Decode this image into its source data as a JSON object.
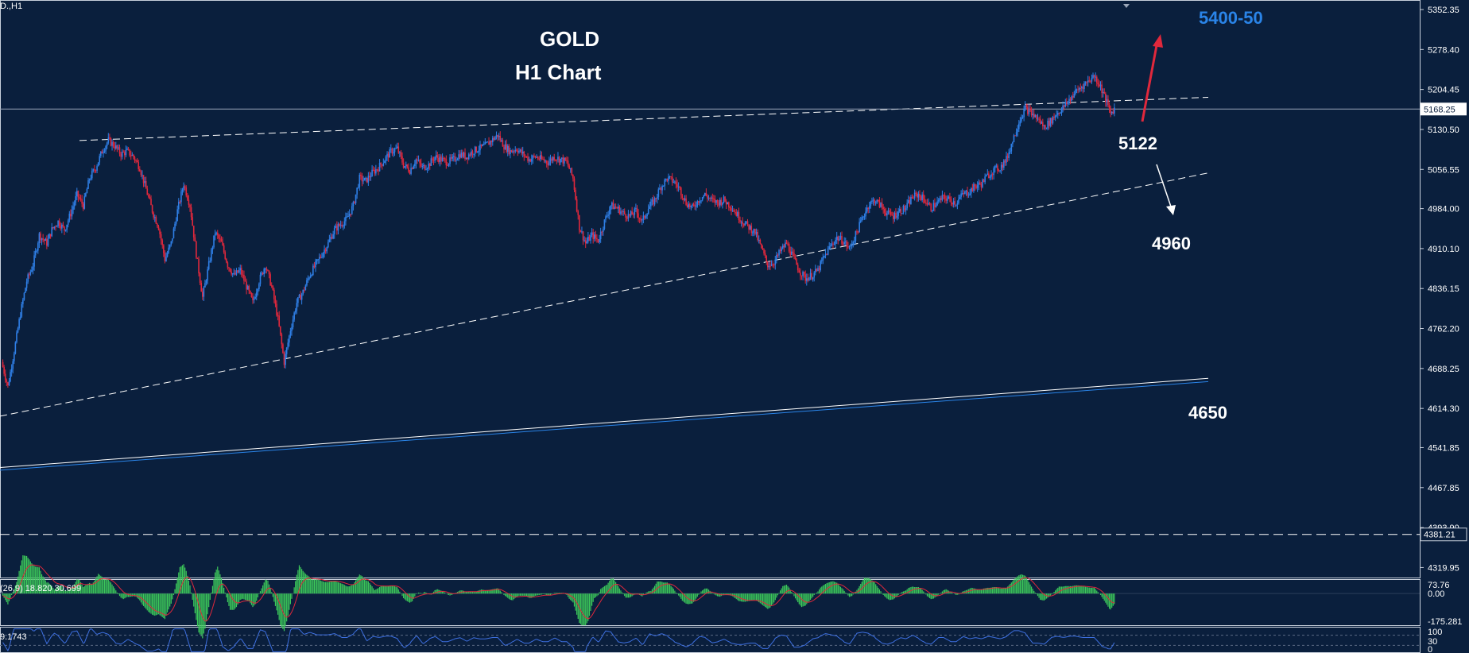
{
  "symbol_label": "D.,H1",
  "chart_data": {
    "type": "candlestick",
    "title": "GOLD",
    "subtitle": "H1 Chart",
    "colors": {
      "background": "#0a1f3d",
      "bull": "#2f7fe6",
      "bear": "#e0283c",
      "grid_line": "#ffffff",
      "macd_hist": "#3cc85a",
      "macd_signal": "#e0283c",
      "rsi_line": "#3d6fe0"
    },
    "y_ticks": [
      "5352.35",
      "5278.40",
      "5204.45",
      "5130.50",
      "5056.55",
      "4984.00",
      "4910.10",
      "4836.15",
      "4762.20",
      "4688.25",
      "4614.30",
      "4541.85",
      "4467.85",
      "4393.90",
      "4319.95"
    ],
    "ylim": [
      4300,
      5370
    ],
    "current_price": "5168.25",
    "horizontal_level": "4381.21",
    "price_path": [
      [
        0,
        4700
      ],
      [
        5,
        4655
      ],
      [
        10,
        4720
      ],
      [
        15,
        4790
      ],
      [
        20,
        4850
      ],
      [
        25,
        4880
      ],
      [
        30,
        4935
      ],
      [
        36,
        4920
      ],
      [
        40,
        4945
      ],
      [
        45,
        4960
      ],
      [
        50,
        4945
      ],
      [
        55,
        4975
      ],
      [
        60,
        5010
      ],
      [
        65,
        4990
      ],
      [
        70,
        5040
      ],
      [
        75,
        5060
      ],
      [
        80,
        5090
      ],
      [
        85,
        5110
      ],
      [
        90,
        5100
      ],
      [
        95,
        5085
      ],
      [
        100,
        5090
      ],
      [
        105,
        5080
      ],
      [
        110,
        5060
      ],
      [
        115,
        5020
      ],
      [
        120,
        4980
      ],
      [
        125,
        4950
      ],
      [
        130,
        4890
      ],
      [
        135,
        4920
      ],
      [
        140,
        4980
      ],
      [
        145,
        5030
      ],
      [
        150,
        4990
      ],
      [
        155,
        4900
      ],
      [
        160,
        4820
      ],
      [
        165,
        4880
      ],
      [
        170,
        4940
      ],
      [
        175,
        4920
      ],
      [
        180,
        4880
      ],
      [
        185,
        4860
      ],
      [
        190,
        4870
      ],
      [
        195,
        4840
      ],
      [
        200,
        4810
      ],
      [
        205,
        4850
      ],
      [
        210,
        4880
      ],
      [
        215,
        4840
      ],
      [
        220,
        4780
      ],
      [
        225,
        4700
      ],
      [
        230,
        4760
      ],
      [
        235,
        4810
      ],
      [
        240,
        4830
      ],
      [
        245,
        4860
      ],
      [
        250,
        4880
      ],
      [
        255,
        4900
      ],
      [
        260,
        4920
      ],
      [
        265,
        4945
      ],
      [
        270,
        4955
      ],
      [
        275,
        4965
      ],
      [
        280,
        4990
      ],
      [
        285,
        5040
      ],
      [
        290,
        5035
      ],
      [
        295,
        5050
      ],
      [
        300,
        5060
      ],
      [
        305,
        5075
      ],
      [
        310,
        5090
      ],
      [
        315,
        5095
      ],
      [
        320,
        5065
      ],
      [
        325,
        5055
      ],
      [
        330,
        5075
      ],
      [
        335,
        5060
      ],
      [
        340,
        5065
      ],
      [
        345,
        5080
      ],
      [
        350,
        5075
      ],
      [
        355,
        5070
      ],
      [
        360,
        5075
      ],
      [
        365,
        5085
      ],
      [
        370,
        5080
      ],
      [
        375,
        5090
      ],
      [
        380,
        5095
      ],
      [
        385,
        5100
      ],
      [
        390,
        5110
      ],
      [
        395,
        5120
      ],
      [
        400,
        5100
      ],
      [
        405,
        5090
      ],
      [
        410,
        5095
      ],
      [
        415,
        5085
      ],
      [
        420,
        5075
      ],
      [
        425,
        5080
      ],
      [
        430,
        5075
      ],
      [
        435,
        5070
      ],
      [
        440,
        5080
      ],
      [
        445,
        5075
      ],
      [
        450,
        5070
      ],
      [
        455,
        5040
      ],
      [
        460,
        4950
      ],
      [
        465,
        4920
      ],
      [
        470,
        4935
      ],
      [
        475,
        4925
      ],
      [
        480,
        4960
      ],
      [
        485,
        4990
      ],
      [
        490,
        4985
      ],
      [
        495,
        4975
      ],
      [
        500,
        4970
      ],
      [
        505,
        4980
      ],
      [
        510,
        4960
      ],
      [
        515,
        4985
      ],
      [
        520,
        5000
      ],
      [
        525,
        5025
      ],
      [
        530,
        5040
      ],
      [
        535,
        5035
      ],
      [
        540,
        5020
      ],
      [
        545,
        4995
      ],
      [
        550,
        4985
      ],
      [
        555,
        5000
      ],
      [
        560,
        5010
      ],
      [
        565,
        5000
      ],
      [
        570,
        4995
      ],
      [
        575,
        5000
      ],
      [
        580,
        4990
      ],
      [
        585,
        4975
      ],
      [
        590,
        4960
      ],
      [
        595,
        4950
      ],
      [
        600,
        4940
      ],
      [
        605,
        4910
      ],
      [
        610,
        4880
      ],
      [
        615,
        4885
      ],
      [
        620,
        4905
      ],
      [
        625,
        4920
      ],
      [
        630,
        4895
      ],
      [
        635,
        4870
      ],
      [
        640,
        4855
      ],
      [
        645,
        4860
      ],
      [
        650,
        4870
      ],
      [
        655,
        4895
      ],
      [
        660,
        4915
      ],
      [
        665,
        4930
      ],
      [
        670,
        4925
      ],
      [
        675,
        4910
      ],
      [
        680,
        4935
      ],
      [
        685,
        4965
      ],
      [
        690,
        4990
      ],
      [
        695,
        5000
      ],
      [
        700,
        4990
      ],
      [
        705,
        4975
      ],
      [
        710,
        4970
      ],
      [
        715,
        4980
      ],
      [
        720,
        4985
      ],
      [
        725,
        5005
      ],
      [
        730,
        5010
      ],
      [
        735,
        5000
      ],
      [
        740,
        4985
      ],
      [
        745,
        4995
      ],
      [
        750,
        5005
      ],
      [
        755,
        5000
      ],
      [
        760,
        4995
      ],
      [
        765,
        5010
      ],
      [
        770,
        5015
      ],
      [
        775,
        5025
      ],
      [
        780,
        5030
      ],
      [
        785,
        5045
      ],
      [
        790,
        5055
      ],
      [
        795,
        5060
      ],
      [
        800,
        5075
      ],
      [
        805,
        5110
      ],
      [
        810,
        5145
      ],
      [
        815,
        5170
      ],
      [
        820,
        5160
      ],
      [
        825,
        5150
      ],
      [
        830,
        5135
      ],
      [
        835,
        5145
      ],
      [
        840,
        5160
      ],
      [
        845,
        5170
      ],
      [
        850,
        5185
      ],
      [
        855,
        5200
      ],
      [
        860,
        5210
      ],
      [
        865,
        5220
      ],
      [
        870,
        5230
      ],
      [
        875,
        5210
      ],
      [
        880,
        5180
      ],
      [
        883,
        5160
      ],
      [
        886,
        5170
      ]
    ],
    "trendlines": [
      {
        "name": "upper-resistance",
        "p1": [
          100,
          5110
        ],
        "p2": [
          1520,
          5190
        ],
        "style": "dashed"
      },
      {
        "name": "rising-support",
        "p1": [
          0,
          4600
        ],
        "p2": [
          1520,
          5050
        ],
        "style": "dashed"
      },
      {
        "name": "channel-upper",
        "p1": [
          0,
          4505
        ],
        "p2": [
          1520,
          4670
        ],
        "style": "solid"
      },
      {
        "name": "channel-lower",
        "p1": [
          0,
          4500
        ],
        "p2": [
          1520,
          4664
        ],
        "style": "solid"
      }
    ],
    "annotations": [
      {
        "text": "5400-50",
        "color": "#2a84e8"
      },
      {
        "text": "5122",
        "color": "#ffffff"
      },
      {
        "text": "4960",
        "color": "#ffffff"
      },
      {
        "text": "4650",
        "color": "#ffffff"
      }
    ],
    "macd": {
      "label": "(26,9) 18.820 30.699",
      "ticks": [
        "73.76",
        "0.00",
        "-175.281"
      ]
    },
    "rsi": {
      "label": "9.1743",
      "ticks": [
        "100",
        "30",
        "0"
      ]
    }
  }
}
